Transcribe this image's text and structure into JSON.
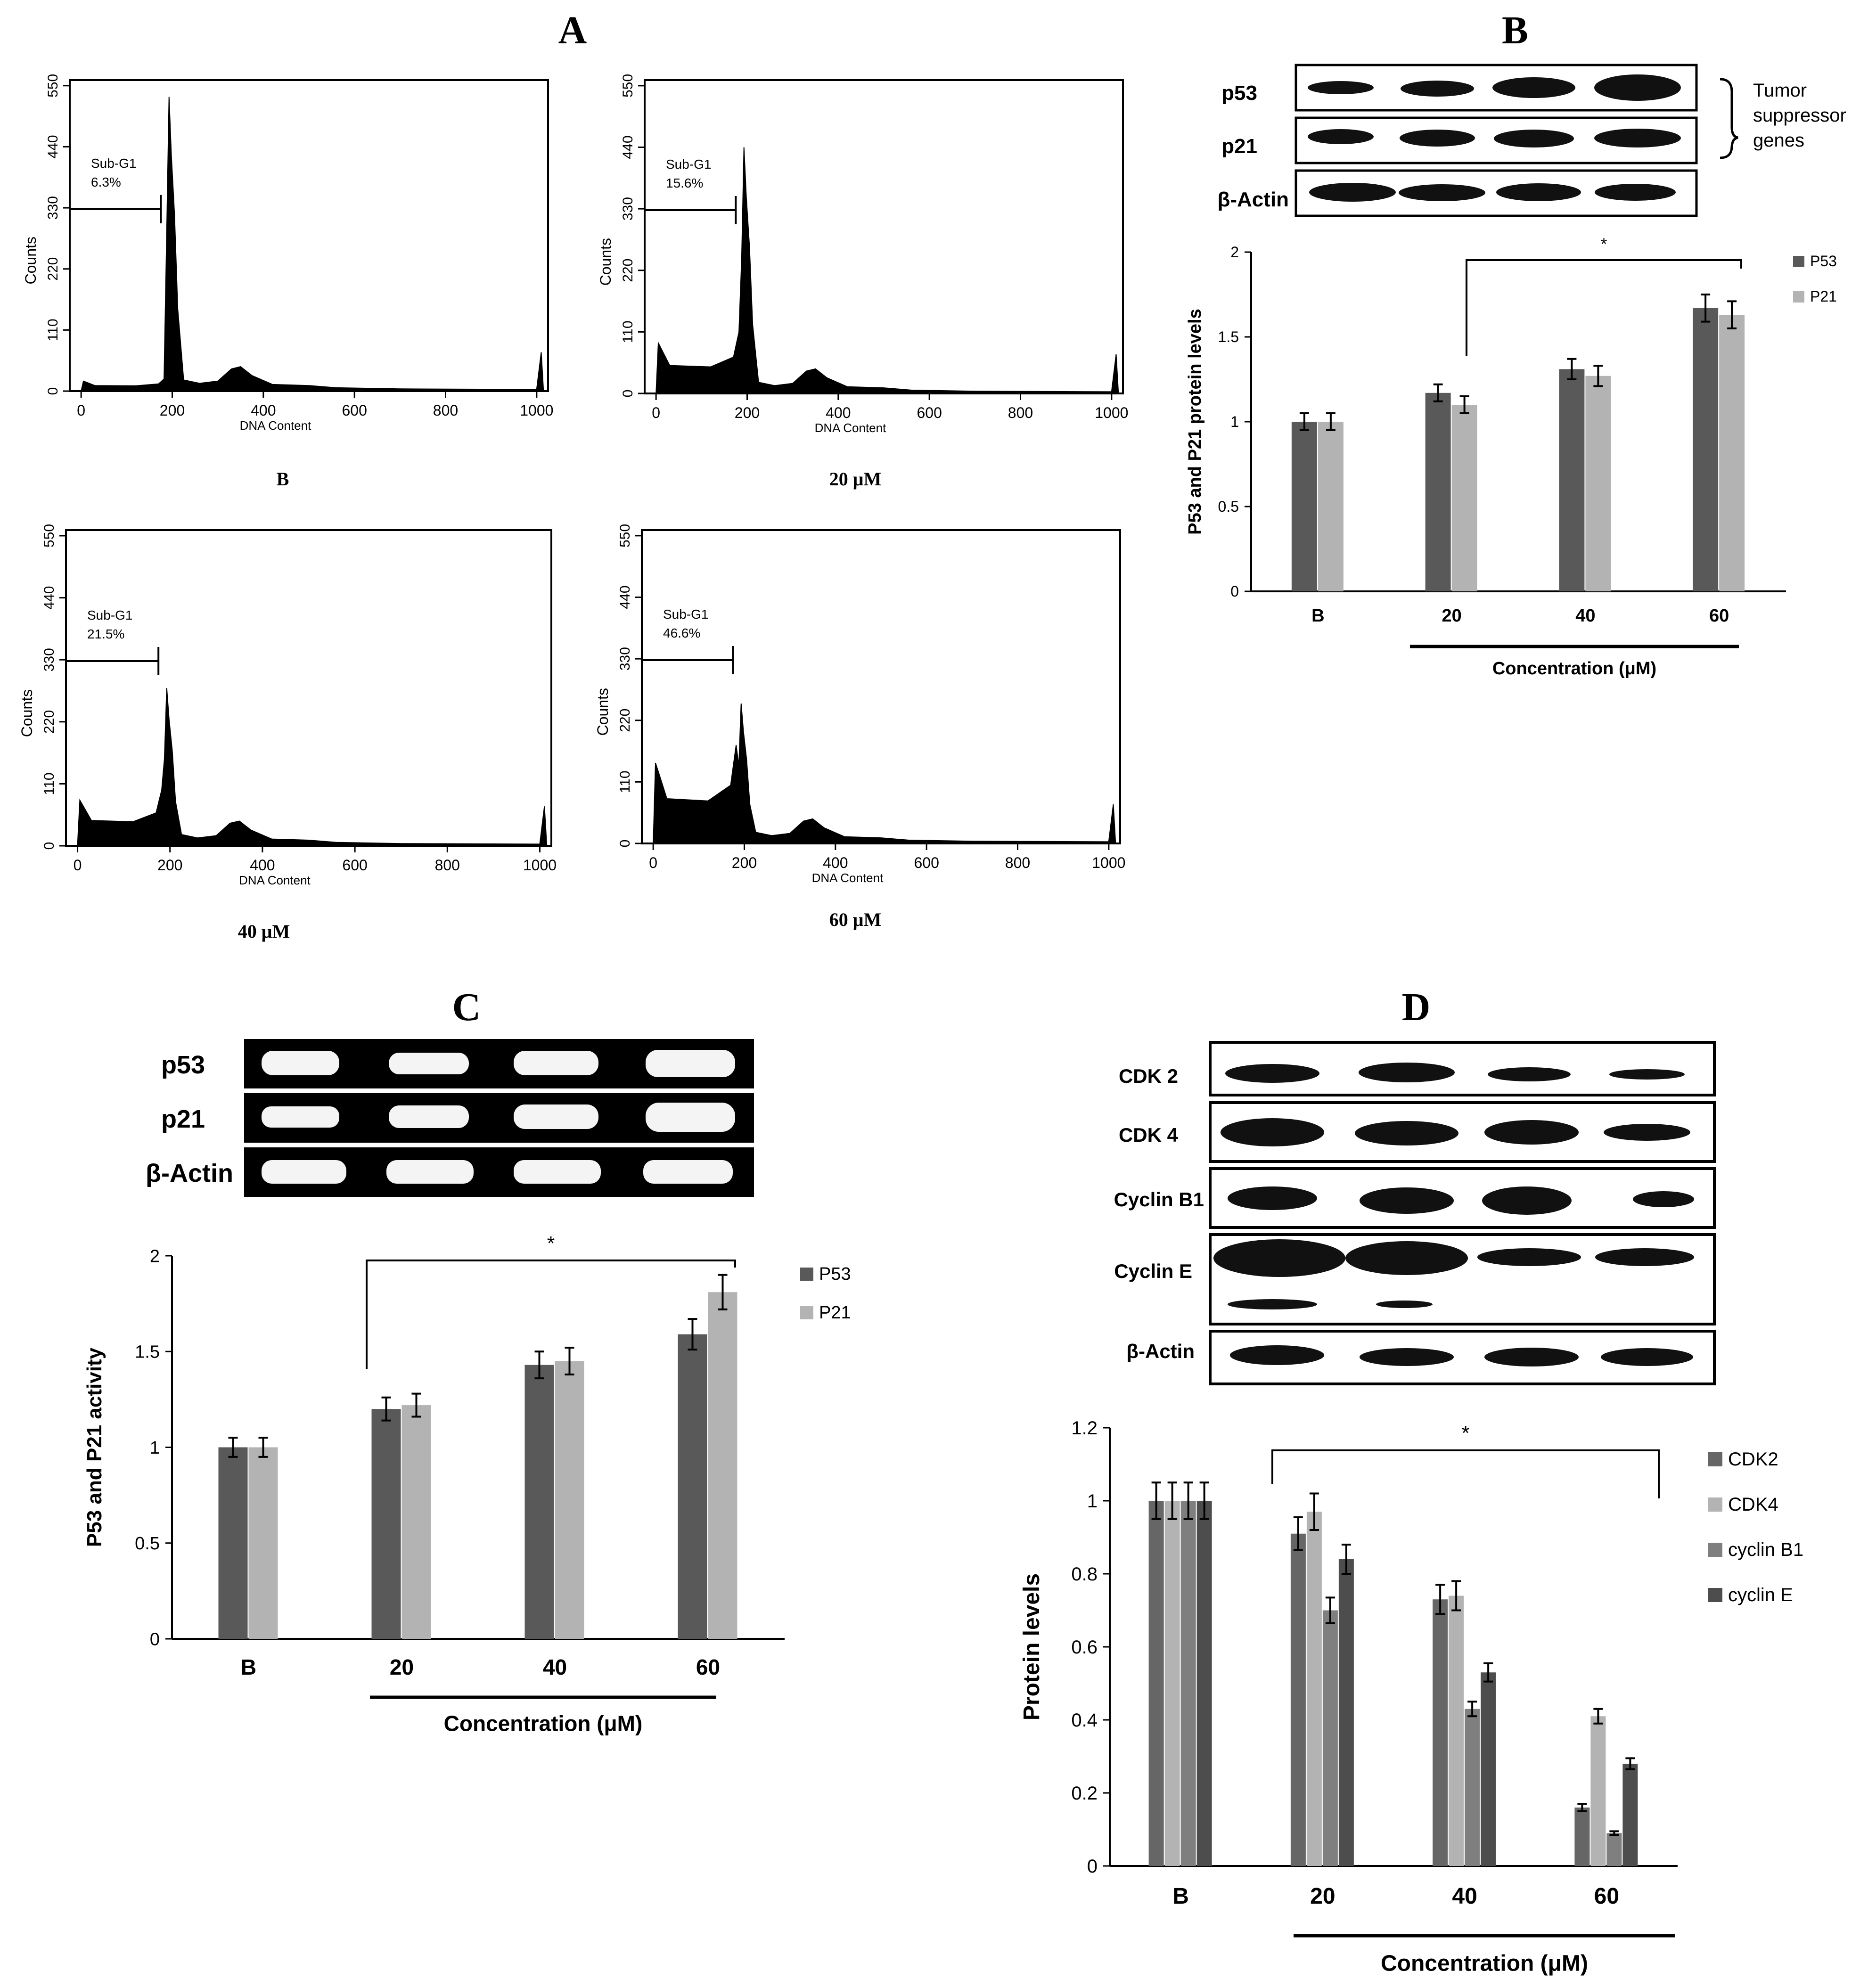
{
  "panels": {
    "A": {
      "letter": "A",
      "histograms": [
        {
          "caption": "B",
          "gate_label": "Sub-G1",
          "gate_value": "6.3%",
          "xlabel": "DNA Content",
          "ylabel": "Counts",
          "peak": 530,
          "shoulder_level": 10,
          "gate_end": 175
        },
        {
          "caption": "20 μM",
          "gate_label": "Sub-G1",
          "gate_value": "15.6%",
          "xlabel": "DNA Content",
          "ylabel": "Counts",
          "peak": 440,
          "shoulder_level": 50,
          "gate_end": 175
        },
        {
          "caption": "40 μM",
          "gate_label": "Sub-G1",
          "gate_value": "21.5%",
          "xlabel": "DNA Content",
          "ylabel": "Counts",
          "peak": 280,
          "shoulder_level": 45,
          "gate_end": 175
        },
        {
          "caption": "60 μM",
          "gate_label": "Sub-G1",
          "gate_value": "46.6%",
          "xlabel": "DNA Content",
          "ylabel": "Counts",
          "peak": 250,
          "shoulder_level": 80,
          "gate_end": 175
        }
      ],
      "x_ticks": [
        "0",
        "200",
        "400",
        "600",
        "800",
        "1000"
      ],
      "y_ticks": [
        "0",
        "110",
        "220",
        "330",
        "440",
        "550"
      ]
    },
    "B": {
      "letter": "B",
      "blot_labels": [
        "p53",
        "p21",
        "β-Actin"
      ],
      "bracket_label": [
        "Tumor",
        "suppressor",
        "genes"
      ],
      "chart_data": {
        "type": "bar",
        "categories": [
          "B",
          "20",
          "40",
          "60"
        ],
        "series": [
          {
            "name": "P53",
            "values": [
              1.0,
              1.17,
              1.31,
              1.67
            ],
            "errors": [
              0.05,
              0.05,
              0.06,
              0.08
            ],
            "color": "#595959"
          },
          {
            "name": "P21",
            "values": [
              1.0,
              1.1,
              1.27,
              1.63
            ],
            "errors": [
              0.05,
              0.05,
              0.06,
              0.08
            ],
            "color": "#b3b3b3"
          }
        ],
        "ylabel": "P53 and P21 protein levels",
        "xlabel": "Concentration (μM)",
        "ylim": [
          0,
          2
        ],
        "y_ticks": [
          "0",
          "0.5",
          "1",
          "1.5",
          "2"
        ],
        "significance": "*",
        "legend": "right"
      }
    },
    "C": {
      "letter": "C",
      "blot_labels": [
        "p53",
        "p21",
        "β-Actin"
      ],
      "chart_data": {
        "type": "bar",
        "categories": [
          "B",
          "20",
          "40",
          "60"
        ],
        "series": [
          {
            "name": "P53",
            "values": [
              1.0,
              1.2,
              1.43,
              1.59
            ],
            "errors": [
              0.05,
              0.06,
              0.07,
              0.08
            ],
            "color": "#595959"
          },
          {
            "name": "P21",
            "values": [
              1.0,
              1.22,
              1.45,
              1.81
            ],
            "errors": [
              0.05,
              0.06,
              0.07,
              0.09
            ],
            "color": "#b3b3b3"
          }
        ],
        "ylabel": "P53 and P21 activity",
        "xlabel": "Concentration (μM)",
        "ylim": [
          0,
          2
        ],
        "y_ticks": [
          "0",
          "0.5",
          "1",
          "1.5",
          "2"
        ],
        "significance": "*",
        "legend": "right"
      }
    },
    "D": {
      "letter": "D",
      "blot_labels": [
        "CDK 2",
        "CDK 4",
        "Cyclin B1",
        "Cyclin E",
        "β-Actin"
      ],
      "chart_data": {
        "type": "bar",
        "categories": [
          "B",
          "20",
          "40",
          "60"
        ],
        "series": [
          {
            "name": "CDK2",
            "values": [
              1.0,
              0.91,
              0.73,
              0.16
            ],
            "errors": [
              0.05,
              0.045,
              0.04,
              0.01
            ],
            "color": "#666666"
          },
          {
            "name": "CDK4",
            "values": [
              1.0,
              0.97,
              0.74,
              0.41
            ],
            "errors": [
              0.05,
              0.05,
              0.04,
              0.02
            ],
            "color": "#b3b3b3"
          },
          {
            "name": "cyclin B1",
            "values": [
              1.0,
              0.7,
              0.43,
              0.09
            ],
            "errors": [
              0.05,
              0.035,
              0.02,
              0.005
            ],
            "color": "#7f7f7f"
          },
          {
            "name": "cyclin E",
            "values": [
              1.0,
              0.84,
              0.53,
              0.28
            ],
            "errors": [
              0.05,
              0.04,
              0.025,
              0.015
            ],
            "color": "#4d4d4d"
          }
        ],
        "ylabel": "Protein levels",
        "xlabel": "Concentration (μM)",
        "ylim": [
          0,
          1.2
        ],
        "y_ticks": [
          "0",
          "0.2",
          "0.4",
          "0.6",
          "0.8",
          "1",
          "1.2"
        ],
        "significance": "*",
        "legend": "right"
      }
    }
  }
}
